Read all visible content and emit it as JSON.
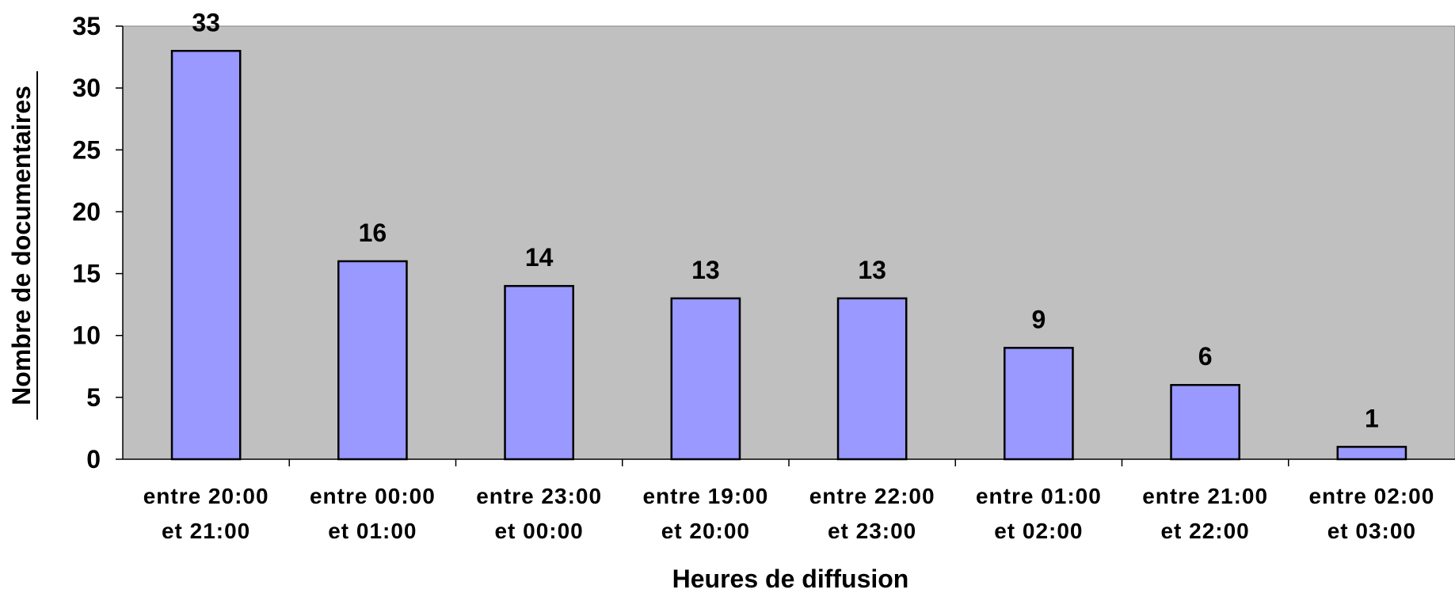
{
  "chart_data": {
    "type": "bar",
    "title": "",
    "xlabel": "Heures de diffusion",
    "ylabel": "Nombre de documentaires",
    "categories": [
      [
        "entre 20:00",
        "et 21:00"
      ],
      [
        "entre 00:00",
        "et 01:00"
      ],
      [
        "entre 23:00",
        "et 00:00"
      ],
      [
        "entre 19:00",
        "et 20:00"
      ],
      [
        "entre 22:00",
        "et 23:00"
      ],
      [
        "entre 01:00",
        "et 02:00"
      ],
      [
        "entre 21:00",
        "et 22:00"
      ],
      [
        "entre 02:00",
        "et 03:00"
      ]
    ],
    "values": [
      33,
      16,
      14,
      13,
      13,
      9,
      6,
      1
    ],
    "ylim": [
      0,
      35
    ],
    "yticks": [
      0,
      5,
      10,
      15,
      20,
      25,
      30,
      35
    ],
    "grid": false,
    "legend": "none",
    "colors": {
      "plot_background": "#c0c0c0",
      "bar_fill": "#9999ff",
      "bar_stroke": "#000000"
    }
  }
}
